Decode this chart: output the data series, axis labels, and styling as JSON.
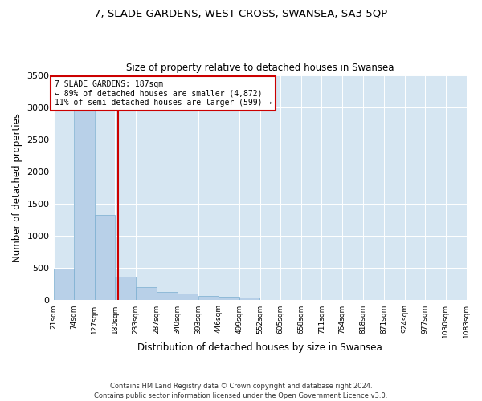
{
  "title1": "7, SLADE GARDENS, WEST CROSS, SWANSEA, SA3 5QP",
  "title2": "Size of property relative to detached houses in Swansea",
  "xlabel": "Distribution of detached houses by size in Swansea",
  "ylabel": "Number of detached properties",
  "footnote": "Contains HM Land Registry data © Crown copyright and database right 2024.\nContains public sector information licensed under the Open Government Licence v3.0.",
  "annotation_line1": "7 SLADE GARDENS: 187sqm",
  "annotation_line2": "← 89% of detached houses are smaller (4,872)",
  "annotation_line3": "11% of semi-detached houses are larger (599) →",
  "property_size": 187,
  "bar_color": "#b8d0e8",
  "bar_edge_color": "#7aaed0",
  "vline_color": "#cc0000",
  "annotation_box_color": "#cc0000",
  "background_color": "#d6e6f2",
  "bins": [
    21,
    74,
    127,
    180,
    233,
    287,
    340,
    393,
    446,
    499,
    552,
    605,
    658,
    711,
    764,
    818,
    871,
    924,
    977,
    1030,
    1083
  ],
  "counts": [
    490,
    2980,
    1330,
    370,
    210,
    125,
    110,
    65,
    55,
    45,
    0,
    0,
    0,
    0,
    0,
    0,
    0,
    0,
    0,
    0
  ],
  "ylim": [
    0,
    3500
  ],
  "yticks": [
    0,
    500,
    1000,
    1500,
    2000,
    2500,
    3000,
    3500
  ]
}
